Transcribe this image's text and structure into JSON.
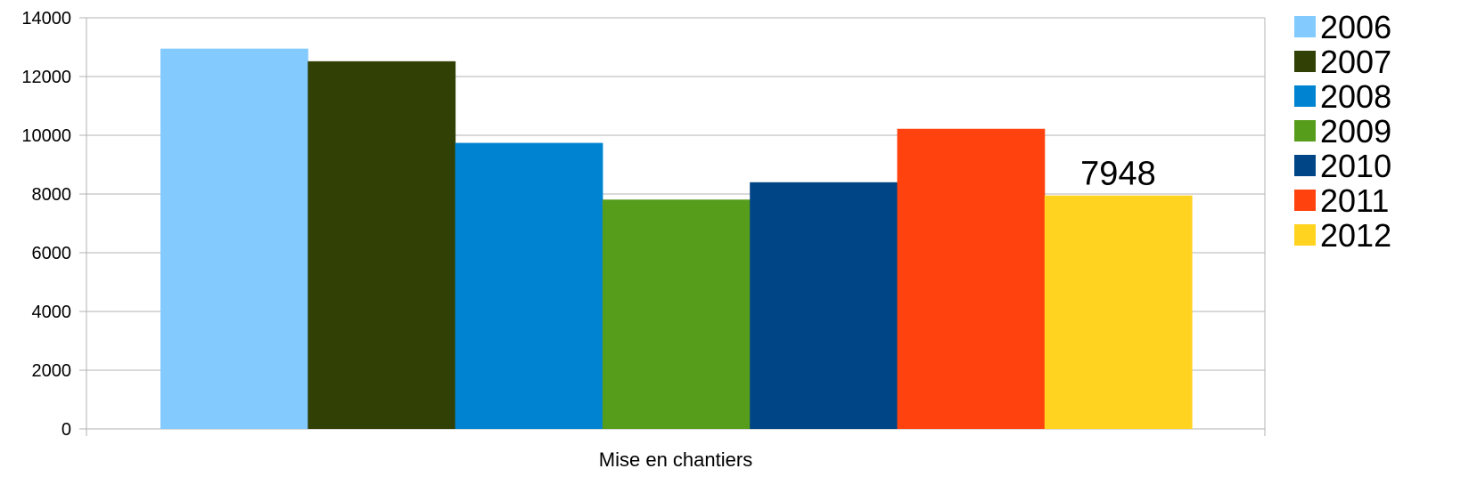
{
  "chart_data": {
    "type": "bar",
    "categories": [
      "Mise en chantiers"
    ],
    "series": [
      {
        "name": "2006",
        "values": [
          12950
        ],
        "color": "#83caff"
      },
      {
        "name": "2007",
        "values": [
          12520
        ],
        "color": "#314004"
      },
      {
        "name": "2008",
        "values": [
          9740
        ],
        "color": "#0084d1"
      },
      {
        "name": "2009",
        "values": [
          7810
        ],
        "color": "#579d1c"
      },
      {
        "name": "2010",
        "values": [
          8400
        ],
        "color": "#004586"
      },
      {
        "name": "2011",
        "values": [
          10220
        ],
        "color": "#ff420e"
      },
      {
        "name": "2012",
        "values": [
          7948
        ],
        "color": "#ffd320"
      }
    ],
    "data_labels": [
      {
        "series": "2012",
        "text": "7948"
      }
    ],
    "title": "",
    "xlabel": "",
    "ylabel": "",
    "ylim": [
      0,
      14000
    ],
    "yticks": [
      0,
      2000,
      4000,
      6000,
      8000,
      10000,
      12000,
      14000
    ],
    "grid": true,
    "legend_position": "right"
  }
}
